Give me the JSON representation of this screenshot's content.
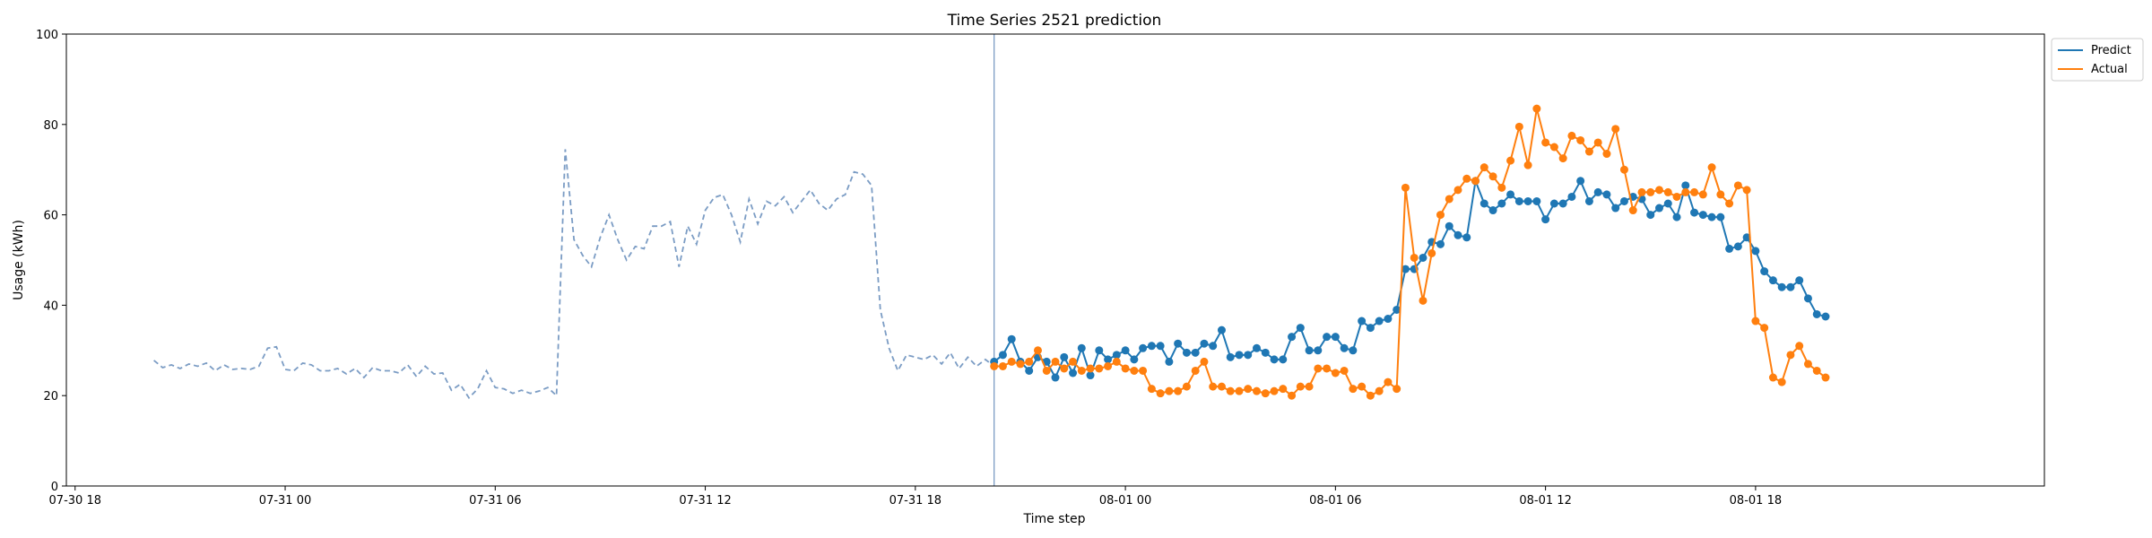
{
  "chart_data": {
    "type": "line",
    "title": "Time Series 2521 prediction",
    "xlabel": "Time step",
    "ylabel": "Usage (kWh)",
    "ylim": [
      0,
      100
    ],
    "xlim": [
      "07-30 17:45",
      "08-02 02:15"
    ],
    "yticks": [
      0,
      20,
      40,
      60,
      80,
      100
    ],
    "xticks": [
      "07-30 18",
      "07-31 00",
      "07-31 06",
      "07-31 12",
      "07-31 18",
      "08-01 00",
      "08-01 06",
      "08-01 12",
      "08-01 18"
    ],
    "xtick_times": [
      "07-30 18:00",
      "07-31 00:00",
      "07-31 06:00",
      "07-31 12:00",
      "07-31 18:00",
      "08-01 00:00",
      "08-01 06:00",
      "08-01 12:00",
      "08-01 18:00"
    ],
    "grid": false,
    "legend_position": "top-right",
    "colors": {
      "predict": "#1f77b4",
      "actual": "#ff7f0e",
      "history": "#7b9cc4",
      "divider": "#7b9cc4"
    },
    "forecast_start": "07-31 20:15",
    "history": {
      "start": "07-30 20:15",
      "step_minutes": 15,
      "values": [
        27.8,
        26.2,
        26.8,
        26.0,
        27.0,
        26.5,
        27.2,
        25.5,
        26.8,
        25.8,
        26.0,
        25.8,
        26.5,
        30.5,
        30.8,
        25.8,
        25.5,
        27.2,
        26.8,
        25.5,
        25.5,
        26.0,
        24.8,
        26.0,
        24.0,
        26.2,
        25.5,
        25.5,
        25.0,
        26.8,
        24.2,
        26.5,
        24.8,
        25.0,
        21.2,
        22.5,
        19.5,
        21.5,
        25.5,
        21.8,
        21.5,
        20.5,
        21.2,
        20.5,
        21.0,
        21.8,
        20.0,
        74.5,
        54.5,
        51.0,
        48.5,
        55.0,
        60.0,
        54.5,
        50.0,
        53.0,
        52.5,
        57.5,
        57.5,
        58.5,
        48.5,
        57.5,
        53.5,
        61.0,
        63.8,
        64.5,
        60.0,
        54.0,
        63.5,
        58.0,
        63.0,
        62.0,
        64.0,
        60.5,
        63.0,
        65.5,
        62.5,
        61.0,
        63.5,
        64.5,
        69.5,
        69.0,
        66.5,
        39.0,
        30.5,
        25.5,
        29.0,
        28.5,
        28.0,
        29.0,
        27.0,
        29.5,
        26.0,
        28.5,
        26.5,
        28.0,
        26.5
      ]
    },
    "series": [
      {
        "name": "Predict",
        "start": "07-31 20:15",
        "step_minutes": 15,
        "values": [
          27.5,
          29.0,
          32.5,
          27.5,
          25.5,
          28.5,
          27.5,
          24.0,
          28.5,
          25.0,
          30.5,
          24.5,
          30.0,
          28.0,
          29.0,
          30.0,
          28.0,
          30.5,
          31.0,
          31.0,
          27.5,
          31.5,
          29.5,
          29.5,
          31.5,
          31.0,
          34.5,
          28.5,
          29.0,
          29.0,
          30.5,
          29.5,
          28.0,
          28.0,
          33.0,
          35.0,
          30.0,
          30.0,
          33.0,
          33.0,
          30.5,
          30.0,
          36.5,
          35.0,
          36.5,
          37.0,
          39.0,
          48.0,
          48.0,
          50.5,
          54.0,
          53.5,
          57.5,
          55.5,
          55.0,
          67.5,
          62.5,
          61.0,
          62.5,
          64.5,
          63.0,
          63.0,
          63.0,
          59.0,
          62.5,
          62.5,
          64.0,
          67.5,
          63.0,
          65.0,
          64.5,
          61.5,
          63.0,
          64.0,
          63.5,
          60.0,
          61.5,
          62.5,
          59.5,
          66.5,
          60.5,
          60.0,
          59.5,
          59.5,
          52.5,
          53.0,
          55.0,
          52.0,
          47.5,
          45.5,
          44.0,
          44.0,
          45.5,
          41.5,
          38.0,
          37.5
        ]
      },
      {
        "name": "Actual",
        "start": "07-31 20:15",
        "step_minutes": 15,
        "values": [
          26.5,
          26.5,
          27.5,
          27.0,
          27.5,
          30.0,
          25.5,
          27.5,
          26.0,
          27.5,
          25.5,
          26.0,
          26.0,
          26.5,
          27.5,
          26.0,
          25.5,
          25.5,
          21.5,
          20.5,
          21.0,
          21.0,
          22.0,
          25.5,
          27.5,
          22.0,
          22.0,
          21.0,
          21.0,
          21.5,
          21.0,
          20.5,
          21.0,
          21.5,
          20.0,
          22.0,
          22.0,
          26.0,
          26.0,
          25.0,
          25.5,
          21.5,
          22.0,
          20.0,
          21.0,
          23.0,
          21.5,
          66.0,
          50.5,
          41.0,
          51.5,
          60.0,
          63.5,
          65.5,
          68.0,
          67.5,
          70.5,
          68.5,
          66.0,
          72.0,
          79.5,
          71.0,
          83.5,
          76.0,
          75.0,
          72.5,
          77.5,
          76.5,
          74.0,
          76.0,
          73.5,
          79.0,
          70.0,
          61.0,
          65.0,
          65.0,
          65.5,
          65.0,
          64.0,
          65.0,
          65.0,
          64.5,
          70.5,
          64.5,
          62.5,
          66.5,
          65.5,
          36.5,
          35.0,
          24.0,
          23.0,
          29.0,
          31.0,
          27.0,
          25.5,
          24.0
        ]
      }
    ]
  }
}
